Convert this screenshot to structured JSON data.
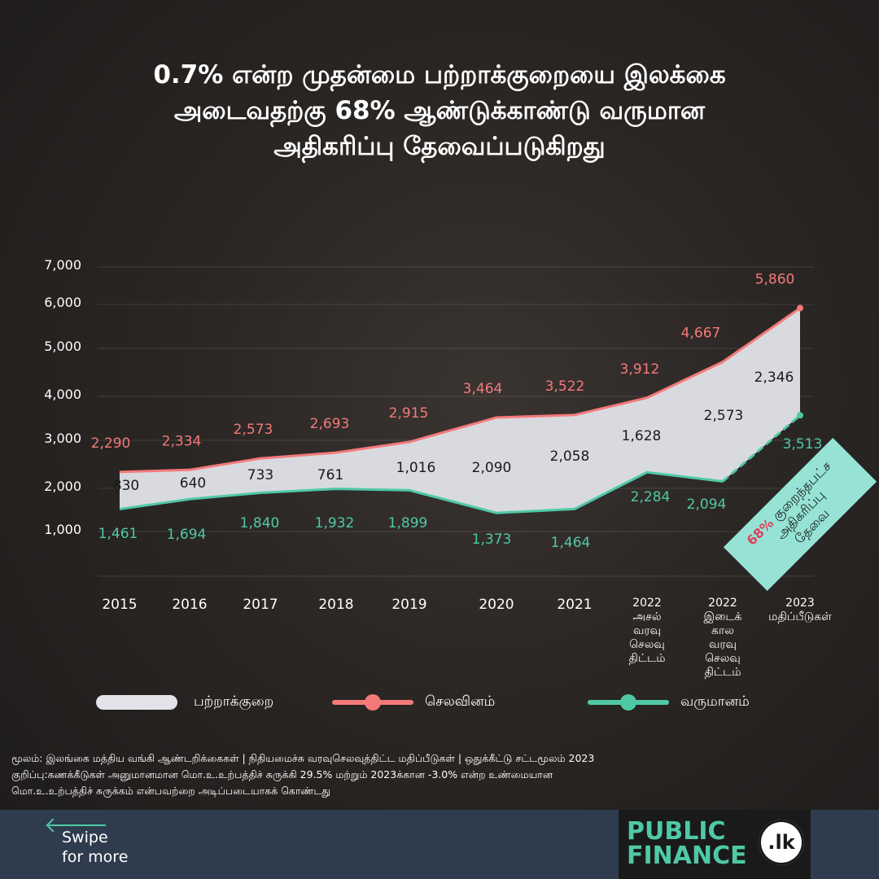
{
  "title_lines": [
    "0.7% என்ற முதன்மை பற்றாக்குறையை இலக்கை",
    "அடைவதற்கு 68% ஆண்டுக்காண்டு வருமான",
    "அதிகரிப்பு தேவைப்படுகிறது"
  ],
  "colors": {
    "expenditure": "#f47a7a",
    "revenue": "#4fc9a5",
    "deficit": "#e2e4ea",
    "callout": "#96e3d6"
  },
  "chart_data": {
    "type": "area",
    "x": [
      "2015",
      "2016",
      "2017",
      "2018",
      "2019",
      "2020",
      "2021",
      "2022 அசல் வரவு செலவு திட்டம்",
      "2022 இடைக் கால வரவு செலவு திட்டம்",
      "2023 மதிப்பீடுகள்"
    ],
    "x_tick_lines": [
      [
        "2015"
      ],
      [
        "2016"
      ],
      [
        "2017"
      ],
      [
        "2018"
      ],
      [
        "2019"
      ],
      [
        "2020"
      ],
      [
        "2021"
      ],
      [
        "2022",
        "அசல்",
        "வரவு",
        "செலவு",
        "திட்டம்"
      ],
      [
        "2022",
        "இடைக்",
        "கால",
        "வரவு",
        "செலவு",
        "திட்டம்"
      ],
      [
        "2023",
        "மதிப்பீடுகள்"
      ]
    ],
    "y_ticks": [
      "1,000",
      "2,000",
      "3,000",
      "4,000",
      "5,000",
      "6,000",
      "7,000"
    ],
    "ylim": [
      0,
      7000
    ],
    "grid": true,
    "legend_placement": "bottom",
    "series": [
      {
        "name": "செலவினம்",
        "values": [
          2290,
          2334,
          2573,
          2693,
          2915,
          3464,
          3522,
          3912,
          4667,
          5860
        ],
        "labels": [
          "2,290",
          "2,334",
          "2,573",
          "2,693",
          "2,915",
          "3,464",
          "3,522",
          "3,912",
          "4,667",
          "5,860"
        ]
      },
      {
        "name": "வருமானம்",
        "values": [
          1461,
          1694,
          1840,
          1932,
          1899,
          1373,
          1464,
          2284,
          2094,
          3513
        ],
        "labels": [
          "1,461",
          "1,694",
          "1,840",
          "1,932",
          "1,899",
          "1,373",
          "1,464",
          "2,284",
          "2,094",
          "3,513"
        ]
      },
      {
        "name": "பற்றாக்குறை",
        "values": [
          830,
          640,
          733,
          761,
          1016,
          2090,
          2058,
          1628,
          2573,
          2346
        ],
        "labels": [
          "830",
          "640",
          "733",
          "761",
          "1,016",
          "2,090",
          "2,058",
          "1,628",
          "2,573",
          "2,346"
        ]
      }
    ],
    "callout": {
      "highlight": "68%",
      "lines": [
        "குறைந்தபட்ச",
        "அதிகரிப்பு",
        "தேவை"
      ]
    }
  },
  "legend": {
    "deficit": "பற்றாக்குறை",
    "expenditure": "செலவினம்",
    "revenue": "வருமானம்"
  },
  "source_lines": [
    "மூலம்: இலங்கை மத்திய வங்கி ஆண்டறிக்கைகள் | நிதியமைச்சு வரவுசெலவுத்திட்ட மதிப்பீடுகள் | ஒதுக்கீட்டு சட்டமூலம் 2023",
    "குறிப்பு:கணக்கீடுகள் அனுமானமான மொ.உ.உற்பத்திச் சுருக்கி 29.5% மற்றும் 2023க்கான -3.0% என்ற உண்மையான",
    "மொ.உ.உற்பத்திச் சுருக்கம் என்பவற்றை அடிப்படையாகக் கொண்டது"
  ],
  "footer": {
    "swipe_line1": "Swipe",
    "swipe_line2": "for more",
    "logo_line1": "PUBLIC",
    "logo_line2": "FINANCE",
    "logo_badge": ".lk"
  }
}
